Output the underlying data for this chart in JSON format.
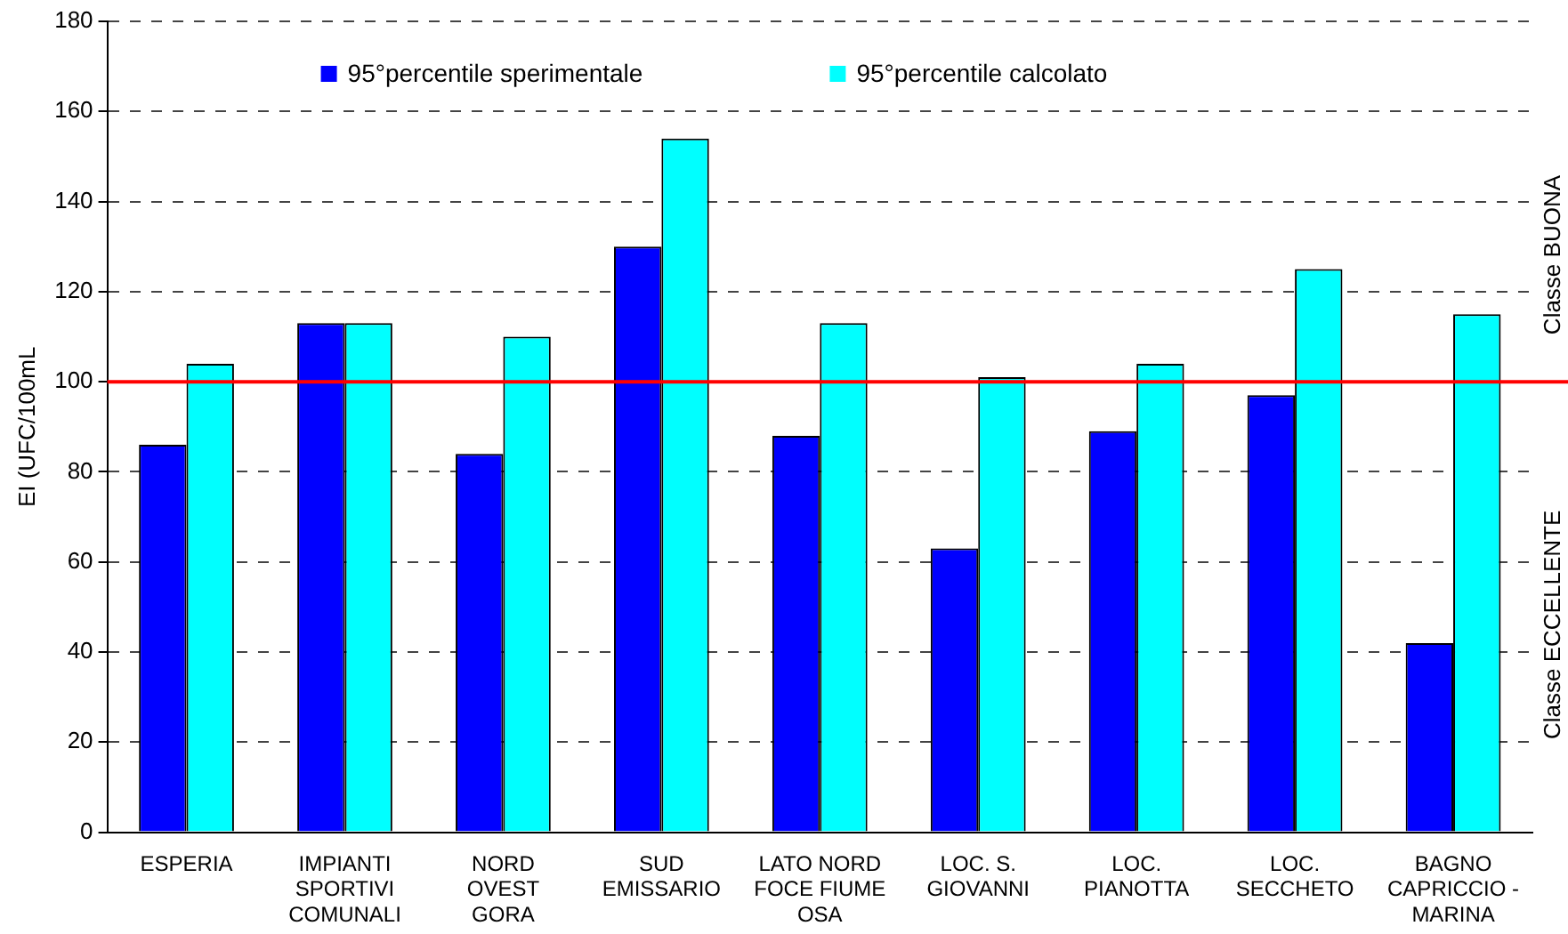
{
  "chart_data": {
    "type": "bar",
    "ylabel": "EI (UFC/100mL",
    "categories": [
      "ESPERIA",
      "IMPIANTI\nSPORTIVI\nCOMUNALI",
      "NORD\nOVEST\nGORA",
      "SUD\nEMISSARIO",
      "LATO NORD\nFOCE FIUME\nOSA",
      "LOC. S.\nGIOVANNI",
      "LOC.\nPIANOTTA",
      "LOC.\nSECCHETO",
      "BAGNO\nCAPRICCIO -\nMARINA"
    ],
    "series": [
      {
        "name": "95°percentile sperimentale",
        "color": "#0000ff",
        "values": [
          86,
          113,
          84,
          130,
          88,
          63,
          89,
          97,
          42
        ]
      },
      {
        "name": "95°percentile calcolato",
        "color": "#00ffff",
        "values": [
          104,
          113,
          110,
          154,
          113,
          101,
          104,
          125,
          115
        ]
      }
    ],
    "ylim": [
      0,
      180
    ],
    "yticks": [
      0,
      20,
      40,
      60,
      80,
      100,
      120,
      140,
      160,
      180
    ],
    "grid": "y",
    "line_style": "dashed",
    "legend": "top",
    "ref_lines": [
      {
        "axis": "y",
        "value": 100,
        "color": "#ff0000"
      }
    ],
    "annotations": [
      "Classe BUONA",
      "Classe ECCELLENTE"
    ]
  }
}
